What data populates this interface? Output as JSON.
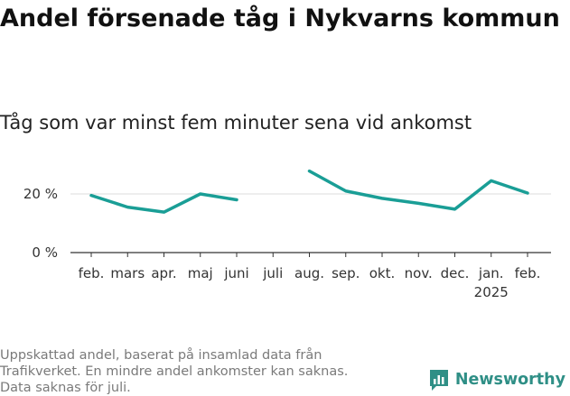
{
  "header": {
    "title": "Andel försenade tåg i Nykvarns kommun",
    "subtitle": "Tåg som var minst fem minuter sena vid ankomst"
  },
  "footer": {
    "note_lines": [
      "Uppskattad andel, baserat på insamlad data från",
      "Trafikverket. En mindre andel ankomster kan saknas.",
      "Data saknas för juli."
    ],
    "logo_text": "Newsworthy"
  },
  "colors": {
    "line": "#1a9e96",
    "grid": "#dddddd",
    "axis": "#333333",
    "logo": "#2f8f86"
  },
  "chart_data": {
    "type": "line",
    "title": "Andel försenade tåg i Nykvarns kommun",
    "subtitle": "Tåg som var minst fem minuter sena vid ankomst",
    "categories": [
      "feb.",
      "mars",
      "apr.",
      "maj",
      "juni",
      "juli",
      "aug.",
      "sep.",
      "okt.",
      "nov.",
      "dec.",
      "jan.",
      "feb."
    ],
    "category_sublabels": [
      "",
      "",
      "",
      "",
      "",
      "",
      "",
      "",
      "",
      "",
      "",
      "2025",
      ""
    ],
    "series": [
      {
        "values": [
          19.5,
          15.5,
          13.8,
          20,
          18,
          null,
          27.8,
          21,
          18.5,
          16.8,
          14.8,
          24.5,
          20.3
        ]
      }
    ],
    "yticks": [
      0,
      20
    ],
    "ytick_labels": [
      "0 %",
      "20 %"
    ],
    "ylim": [
      0,
      30
    ],
    "grid": true,
    "legend": "none"
  }
}
